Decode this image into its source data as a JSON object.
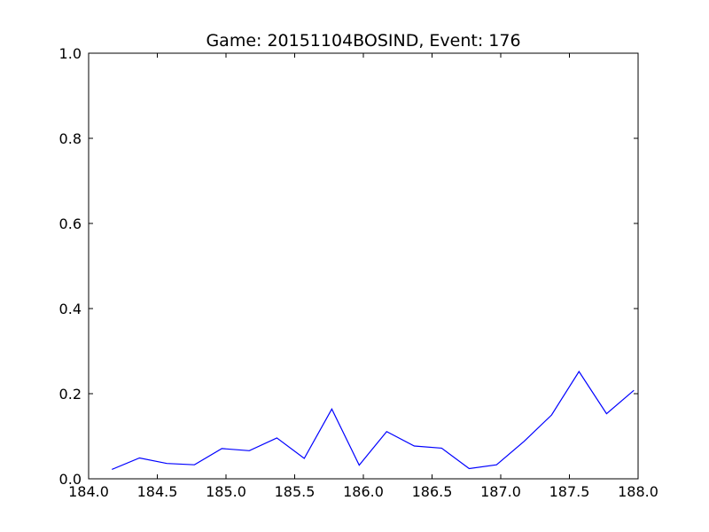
{
  "chart_data": {
    "type": "line",
    "title": "Game: 20151104BOSIND, Event: 176",
    "xlabel": "",
    "ylabel": "",
    "xlim": [
      184.0,
      188.0
    ],
    "ylim": [
      0.0,
      1.0
    ],
    "xticks": [
      184.0,
      184.5,
      185.0,
      185.5,
      186.0,
      186.5,
      187.0,
      187.5,
      188.0
    ],
    "xtick_labels": [
      "184.0",
      "184.5",
      "185.0",
      "185.5",
      "186.0",
      "186.5",
      "187.0",
      "187.5",
      "188.0"
    ],
    "yticks": [
      0.0,
      0.2,
      0.4,
      0.6,
      0.8,
      1.0
    ],
    "ytick_labels": [
      "0.0",
      "0.2",
      "0.4",
      "0.6",
      "0.8",
      "1.0"
    ],
    "grid": false,
    "series": [
      {
        "color": "#0000ff",
        "x": [
          184.17,
          184.37,
          184.57,
          184.77,
          184.97,
          185.17,
          185.37,
          185.57,
          185.77,
          185.97,
          186.17,
          186.37,
          186.57,
          186.77,
          186.97,
          187.17,
          187.37,
          187.57,
          187.77,
          187.97
        ],
        "y": [
          0.022,
          0.049,
          0.036,
          0.033,
          0.071,
          0.066,
          0.096,
          0.048,
          0.164,
          0.032,
          0.111,
          0.077,
          0.072,
          0.024,
          0.033,
          0.088,
          0.15,
          0.252,
          0.153,
          0.208
        ]
      }
    ]
  }
}
